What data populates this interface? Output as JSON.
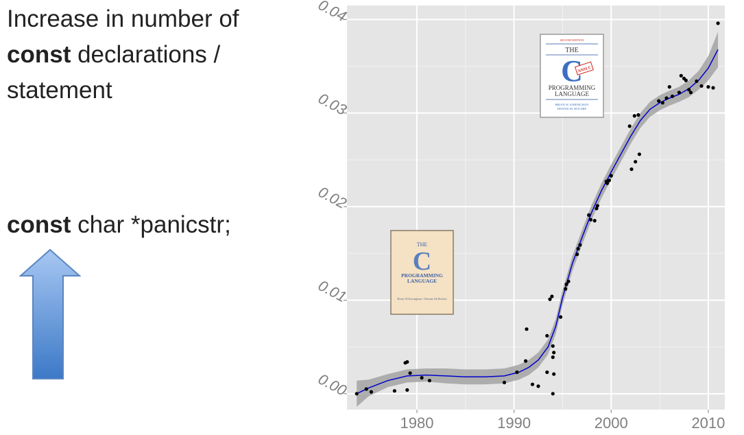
{
  "heading": {
    "line1": "Increase in number of",
    "bold": "const",
    "line2_rest": " declarations /",
    "line3": "statement"
  },
  "code": {
    "keyword": "const",
    "rest": " char *panicstr;"
  },
  "arrow": {
    "icon": "up-arrow-icon",
    "fill_top": "#a7c7f2",
    "fill_bottom": "#3c79c7",
    "stroke": "#5b86c0"
  },
  "book_old": {
    "title1": "THE",
    "letter": "C",
    "title2": "PROGRAMMING",
    "title3": "LANGUAGE",
    "authors": "Brian W.Kernighan • Dennis M.Ritchie"
  },
  "book_new": {
    "edition": "SECOND EDITION",
    "title1": "THE",
    "letter": "C",
    "badge": "ANSI C",
    "title2": "PROGRAMMING",
    "title3": "LANGUAGE",
    "author1": "BRIAN W. KERNIGHAN",
    "author2": "DENNIS M. RITCHIE"
  },
  "chart_data": {
    "type": "scatter",
    "title": "",
    "xlabel": "",
    "ylabel": "",
    "xlim": [
      1972.8,
      2011.7
    ],
    "ylim": [
      -0.0017,
      0.0415
    ],
    "x_ticks": [
      1980,
      1990,
      2000,
      2010
    ],
    "x_tick_labels": [
      "1980",
      "1990",
      "2000",
      "2010"
    ],
    "y_ticks": [
      0.0,
      0.01,
      0.02,
      0.03,
      0.04
    ],
    "y_tick_labels": [
      "0.00",
      "0.01",
      "0.02",
      "0.03",
      "0.04"
    ],
    "grid": true,
    "background": "#e5e5e5",
    "point_color": "#000000",
    "trend_color": "#0000cc",
    "band_color": "#a3a3a3",
    "points": [
      [
        1973.8,
        0.0
      ],
      [
        1974.8,
        0.0005
      ],
      [
        1975.3,
        0.0002
      ],
      [
        1977.7,
        0.0003
      ],
      [
        1978.8,
        0.0033
      ],
      [
        1979.0,
        0.0034
      ],
      [
        1979.0,
        0.0004
      ],
      [
        1979.3,
        0.0022
      ],
      [
        1980.5,
        0.0017
      ],
      [
        1981.3,
        0.0014
      ],
      [
        1989.0,
        0.0012
      ],
      [
        1990.3,
        0.0023
      ],
      [
        1991.2,
        0.0035
      ],
      [
        1991.3,
        0.0069
      ],
      [
        1991.9,
        0.001
      ],
      [
        1992.5,
        0.0008
      ],
      [
        1993.4,
        0.0062
      ],
      [
        1993.4,
        0.0023
      ],
      [
        1993.7,
        0.0101
      ],
      [
        1993.9,
        0.0104
      ],
      [
        1994.0,
        0.0039
      ],
      [
        1994.0,
        0.0051
      ],
      [
        1994.1,
        0.0044
      ],
      [
        1994.1,
        0.0021
      ],
      [
        1994.0,
        0.0
      ],
      [
        1994.8,
        0.0082
      ],
      [
        1995.3,
        0.0112
      ],
      [
        1995.4,
        0.0117
      ],
      [
        1995.6,
        0.012
      ],
      [
        1996.5,
        0.0149
      ],
      [
        1996.6,
        0.0155
      ],
      [
        1996.8,
        0.0159
      ],
      [
        1997.7,
        0.0191
      ],
      [
        1997.9,
        0.0186
      ],
      [
        1998.3,
        0.0185
      ],
      [
        1998.5,
        0.0198
      ],
      [
        1998.6,
        0.0201
      ],
      [
        1999.5,
        0.0227
      ],
      [
        1999.6,
        0.0225
      ],
      [
        1999.8,
        0.0228
      ],
      [
        2000.0,
        0.0233
      ],
      [
        2001.9,
        0.0286
      ],
      [
        2002.1,
        0.024
      ],
      [
        2002.4,
        0.0297
      ],
      [
        2002.5,
        0.0248
      ],
      [
        2002.8,
        0.0298
      ],
      [
        2002.9,
        0.0256
      ],
      [
        2004.9,
        0.0313
      ],
      [
        2005.3,
        0.0311
      ],
      [
        2005.7,
        0.0316
      ],
      [
        2006.0,
        0.0328
      ],
      [
        2006.3,
        0.0318
      ],
      [
        2007.0,
        0.0322
      ],
      [
        2007.2,
        0.034
      ],
      [
        2007.5,
        0.0337
      ],
      [
        2007.7,
        0.0335
      ],
      [
        2008.0,
        0.0325
      ],
      [
        2008.2,
        0.0322
      ],
      [
        2008.8,
        0.0334
      ],
      [
        2009.3,
        0.0329
      ],
      [
        2010.0,
        0.0328
      ],
      [
        2010.5,
        0.0327
      ],
      [
        2011.0,
        0.0396
      ]
    ],
    "trend": [
      [
        1973.8,
        0.0
      ],
      [
        1975.0,
        0.0006
      ],
      [
        1977.0,
        0.0014
      ],
      [
        1979.0,
        0.0019
      ],
      [
        1981.0,
        0.002
      ],
      [
        1983.0,
        0.0019
      ],
      [
        1985.0,
        0.0018
      ],
      [
        1987.0,
        0.0018
      ],
      [
        1989.0,
        0.0019
      ],
      [
        1990.5,
        0.0023
      ],
      [
        1991.5,
        0.0028
      ],
      [
        1992.5,
        0.0036
      ],
      [
        1993.5,
        0.005
      ],
      [
        1994.3,
        0.0072
      ],
      [
        1995.0,
        0.0103
      ],
      [
        1996.0,
        0.0139
      ],
      [
        1997.0,
        0.0167
      ],
      [
        1998.0,
        0.0194
      ],
      [
        1999.0,
        0.0217
      ],
      [
        2000.0,
        0.0237
      ],
      [
        2001.0,
        0.0256
      ],
      [
        2002.0,
        0.0275
      ],
      [
        2003.0,
        0.0292
      ],
      [
        2004.0,
        0.0304
      ],
      [
        2005.0,
        0.0311
      ],
      [
        2006.0,
        0.0316
      ],
      [
        2007.0,
        0.032
      ],
      [
        2008.0,
        0.0326
      ],
      [
        2009.0,
        0.0335
      ],
      [
        2010.0,
        0.0348
      ],
      [
        2011.0,
        0.0368
      ]
    ],
    "band": [
      [
        1973.8,
        -0.0014,
        0.0014
      ],
      [
        1975.0,
        -0.0003,
        0.0015
      ],
      [
        1977.0,
        0.0007,
        0.0021
      ],
      [
        1979.0,
        0.0012,
        0.0026
      ],
      [
        1981.0,
        0.0013,
        0.0027
      ],
      [
        1983.0,
        0.0011,
        0.0027
      ],
      [
        1985.0,
        0.001,
        0.0026
      ],
      [
        1987.0,
        0.001,
        0.0026
      ],
      [
        1989.0,
        0.0011,
        0.0027
      ],
      [
        1990.5,
        0.0015,
        0.0031
      ],
      [
        1991.5,
        0.002,
        0.0036
      ],
      [
        1992.5,
        0.0028,
        0.0044
      ],
      [
        1993.5,
        0.0042,
        0.0058
      ],
      [
        1994.3,
        0.0064,
        0.008
      ],
      [
        1995.0,
        0.0095,
        0.0111
      ],
      [
        1996.0,
        0.0131,
        0.0147
      ],
      [
        1997.0,
        0.0159,
        0.0175
      ],
      [
        1998.0,
        0.0186,
        0.0202
      ],
      [
        1999.0,
        0.0209,
        0.0225
      ],
      [
        2000.0,
        0.0229,
        0.0245
      ],
      [
        2001.0,
        0.0248,
        0.0264
      ],
      [
        2002.0,
        0.0267,
        0.0283
      ],
      [
        2003.0,
        0.0284,
        0.03
      ],
      [
        2004.0,
        0.0296,
        0.0312
      ],
      [
        2005.0,
        0.0303,
        0.0319
      ],
      [
        2006.0,
        0.0308,
        0.0324
      ],
      [
        2007.0,
        0.0312,
        0.0328
      ],
      [
        2008.0,
        0.0317,
        0.0335
      ],
      [
        2009.0,
        0.0325,
        0.0345
      ],
      [
        2010.0,
        0.0335,
        0.0361
      ],
      [
        2011.0,
        0.0349,
        0.0387
      ]
    ]
  }
}
